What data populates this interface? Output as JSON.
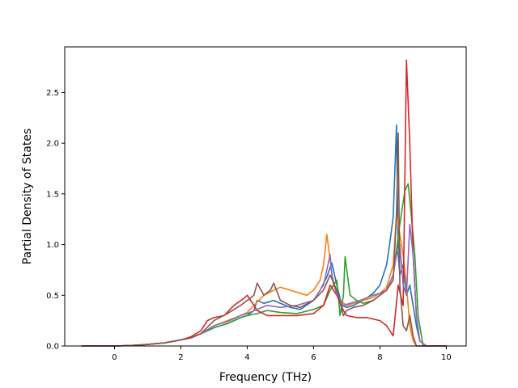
{
  "chart_data": {
    "type": "line",
    "title": "",
    "xlabel": "Frequency (THz)",
    "ylabel": "Partial Density of States",
    "xlim": [
      -1.5,
      10.6
    ],
    "ylim": [
      0.0,
      2.95
    ],
    "xticks": [
      0,
      2,
      4,
      6,
      8,
      10
    ],
    "xtick_labels": [
      "0",
      "2",
      "4",
      "6",
      "8",
      "10"
    ],
    "yticks": [
      0.0,
      0.5,
      1.0,
      1.5,
      2.0,
      2.5
    ],
    "ytick_labels": [
      "0.0",
      "0.5",
      "1.0",
      "1.5",
      "2.0",
      "2.5"
    ],
    "grid": false,
    "legend": "none",
    "series": [
      {
        "color": "#1f77b4",
        "x": [
          -1.0,
          0.0,
          0.5,
          1.0,
          1.5,
          2.0,
          2.3,
          2.6,
          3.0,
          3.4,
          3.8,
          4.0,
          4.2,
          4.3,
          4.5,
          4.8,
          5.0,
          5.3,
          5.6,
          6.0,
          6.2,
          6.4,
          6.55,
          6.7,
          6.85,
          7.0,
          7.2,
          7.5,
          7.8,
          8.0,
          8.2,
          8.3,
          8.4,
          8.5,
          8.55,
          8.6,
          8.7,
          8.8,
          8.9,
          9.0,
          9.1,
          9.2,
          9.4,
          10.0
        ],
        "y": [
          0.0,
          0.0,
          0.005,
          0.015,
          0.03,
          0.06,
          0.08,
          0.12,
          0.18,
          0.22,
          0.28,
          0.3,
          0.35,
          0.45,
          0.42,
          0.45,
          0.42,
          0.38,
          0.36,
          0.45,
          0.55,
          0.68,
          0.82,
          0.6,
          0.4,
          0.38,
          0.4,
          0.45,
          0.52,
          0.6,
          0.8,
          1.02,
          1.27,
          2.18,
          0.9,
          0.7,
          0.8,
          0.5,
          0.6,
          0.4,
          0.2,
          0.05,
          0.0,
          0.0
        ]
      },
      {
        "color": "#ff7f0e",
        "x": [
          -1.0,
          0.0,
          0.5,
          1.0,
          1.5,
          2.0,
          2.3,
          2.6,
          3.0,
          3.4,
          3.8,
          4.0,
          4.2,
          4.5,
          4.8,
          5.0,
          5.3,
          5.6,
          5.8,
          6.0,
          6.2,
          6.3,
          6.4,
          6.5,
          6.6,
          6.8,
          7.0,
          7.2,
          7.5,
          7.8,
          8.0,
          8.2,
          8.4,
          8.5,
          8.6,
          8.7,
          8.8,
          8.9,
          9.0,
          9.1,
          9.2,
          9.4,
          10.0
        ],
        "y": [
          0.0,
          0.0,
          0.005,
          0.015,
          0.03,
          0.06,
          0.08,
          0.12,
          0.2,
          0.25,
          0.3,
          0.33,
          0.4,
          0.5,
          0.55,
          0.58,
          0.55,
          0.52,
          0.5,
          0.55,
          0.65,
          0.8,
          1.1,
          0.85,
          0.6,
          0.45,
          0.4,
          0.42,
          0.45,
          0.48,
          0.52,
          0.58,
          0.8,
          1.3,
          1.1,
          0.9,
          0.6,
          0.2,
          0.05,
          0.0,
          0.0,
          0.0,
          0.0
        ]
      },
      {
        "color": "#2ca02c",
        "x": [
          -1.0,
          0.0,
          0.5,
          1.0,
          1.5,
          2.0,
          2.3,
          2.6,
          3.0,
          3.4,
          3.8,
          4.0,
          4.3,
          4.6,
          5.0,
          5.5,
          6.0,
          6.3,
          6.5,
          6.7,
          6.8,
          6.9,
          6.95,
          7.1,
          7.3,
          7.5,
          7.8,
          8.0,
          8.2,
          8.4,
          8.6,
          8.75,
          8.85,
          8.95,
          9.05,
          9.15,
          9.3,
          10.0
        ],
        "y": [
          0.0,
          0.0,
          0.005,
          0.015,
          0.03,
          0.06,
          0.08,
          0.12,
          0.18,
          0.22,
          0.28,
          0.3,
          0.32,
          0.35,
          0.33,
          0.32,
          0.36,
          0.4,
          0.55,
          0.65,
          0.3,
          0.5,
          0.88,
          0.5,
          0.45,
          0.42,
          0.45,
          0.5,
          0.55,
          0.7,
          1.2,
          1.53,
          1.6,
          1.27,
          0.9,
          0.3,
          0.0,
          0.0
        ]
      },
      {
        "color": "#d62728",
        "x": [
          -1.0,
          0.0,
          0.5,
          1.0,
          1.5,
          2.0,
          2.3,
          2.6,
          2.8,
          3.0,
          3.3,
          3.6,
          3.9,
          4.0,
          4.1,
          4.3,
          4.6,
          5.0,
          5.5,
          6.0,
          6.3,
          6.5,
          6.7,
          6.9,
          7.0,
          7.3,
          7.6,
          8.0,
          8.2,
          8.4,
          8.55,
          8.7,
          8.8,
          8.9,
          9.0,
          9.1,
          9.2,
          9.4,
          10.0
        ],
        "y": [
          0.0,
          0.0,
          0.005,
          0.015,
          0.03,
          0.06,
          0.09,
          0.15,
          0.25,
          0.28,
          0.3,
          0.4,
          0.47,
          0.5,
          0.45,
          0.35,
          0.3,
          0.3,
          0.3,
          0.32,
          0.4,
          0.6,
          0.5,
          0.35,
          0.3,
          0.28,
          0.28,
          0.25,
          0.2,
          0.1,
          0.6,
          0.4,
          2.82,
          2.0,
          0.9,
          0.3,
          0.05,
          0.0,
          0.0
        ]
      },
      {
        "color": "#9467bd",
        "x": [
          -1.0,
          0.0,
          0.5,
          1.0,
          1.5,
          2.0,
          2.3,
          2.6,
          3.0,
          3.4,
          3.8,
          4.0,
          4.3,
          4.6,
          5.0,
          5.5,
          6.0,
          6.3,
          6.5,
          6.55,
          6.7,
          6.9,
          7.1,
          7.4,
          7.8,
          8.0,
          8.2,
          8.4,
          8.5,
          8.6,
          8.7,
          8.8,
          8.9,
          9.0,
          9.1,
          9.2,
          9.4,
          10.0
        ],
        "y": [
          0.0,
          0.0,
          0.005,
          0.015,
          0.03,
          0.06,
          0.08,
          0.12,
          0.2,
          0.24,
          0.3,
          0.32,
          0.36,
          0.4,
          0.38,
          0.4,
          0.45,
          0.6,
          0.9,
          0.7,
          0.5,
          0.4,
          0.42,
          0.45,
          0.5,
          0.52,
          0.55,
          0.7,
          0.9,
          1.0,
          0.6,
          0.5,
          1.2,
          0.9,
          0.3,
          0.05,
          0.0,
          0.0
        ]
      },
      {
        "color": "#8c564b",
        "x": [
          -1.0,
          0.0,
          0.5,
          1.0,
          1.5,
          2.0,
          2.3,
          2.6,
          3.0,
          3.4,
          3.8,
          4.0,
          4.2,
          4.3,
          4.5,
          4.7,
          4.8,
          5.0,
          5.3,
          5.6,
          6.0,
          6.3,
          6.5,
          6.7,
          6.9,
          7.0,
          7.2,
          7.5,
          7.8,
          8.0,
          8.2,
          8.4,
          8.5,
          8.55,
          8.6,
          8.7,
          8.8,
          8.9,
          9.0,
          9.1,
          9.2,
          9.4,
          10.0
        ],
        "y": [
          0.0,
          0.0,
          0.005,
          0.015,
          0.03,
          0.06,
          0.08,
          0.12,
          0.25,
          0.32,
          0.4,
          0.45,
          0.5,
          0.62,
          0.5,
          0.55,
          0.62,
          0.45,
          0.4,
          0.38,
          0.45,
          0.55,
          0.7,
          0.55,
          0.3,
          0.35,
          0.38,
          0.4,
          0.45,
          0.5,
          0.55,
          0.65,
          1.3,
          2.1,
          0.6,
          0.2,
          0.15,
          0.3,
          0.1,
          0.0,
          0.0,
          0.0,
          0.0
        ]
      }
    ]
  }
}
